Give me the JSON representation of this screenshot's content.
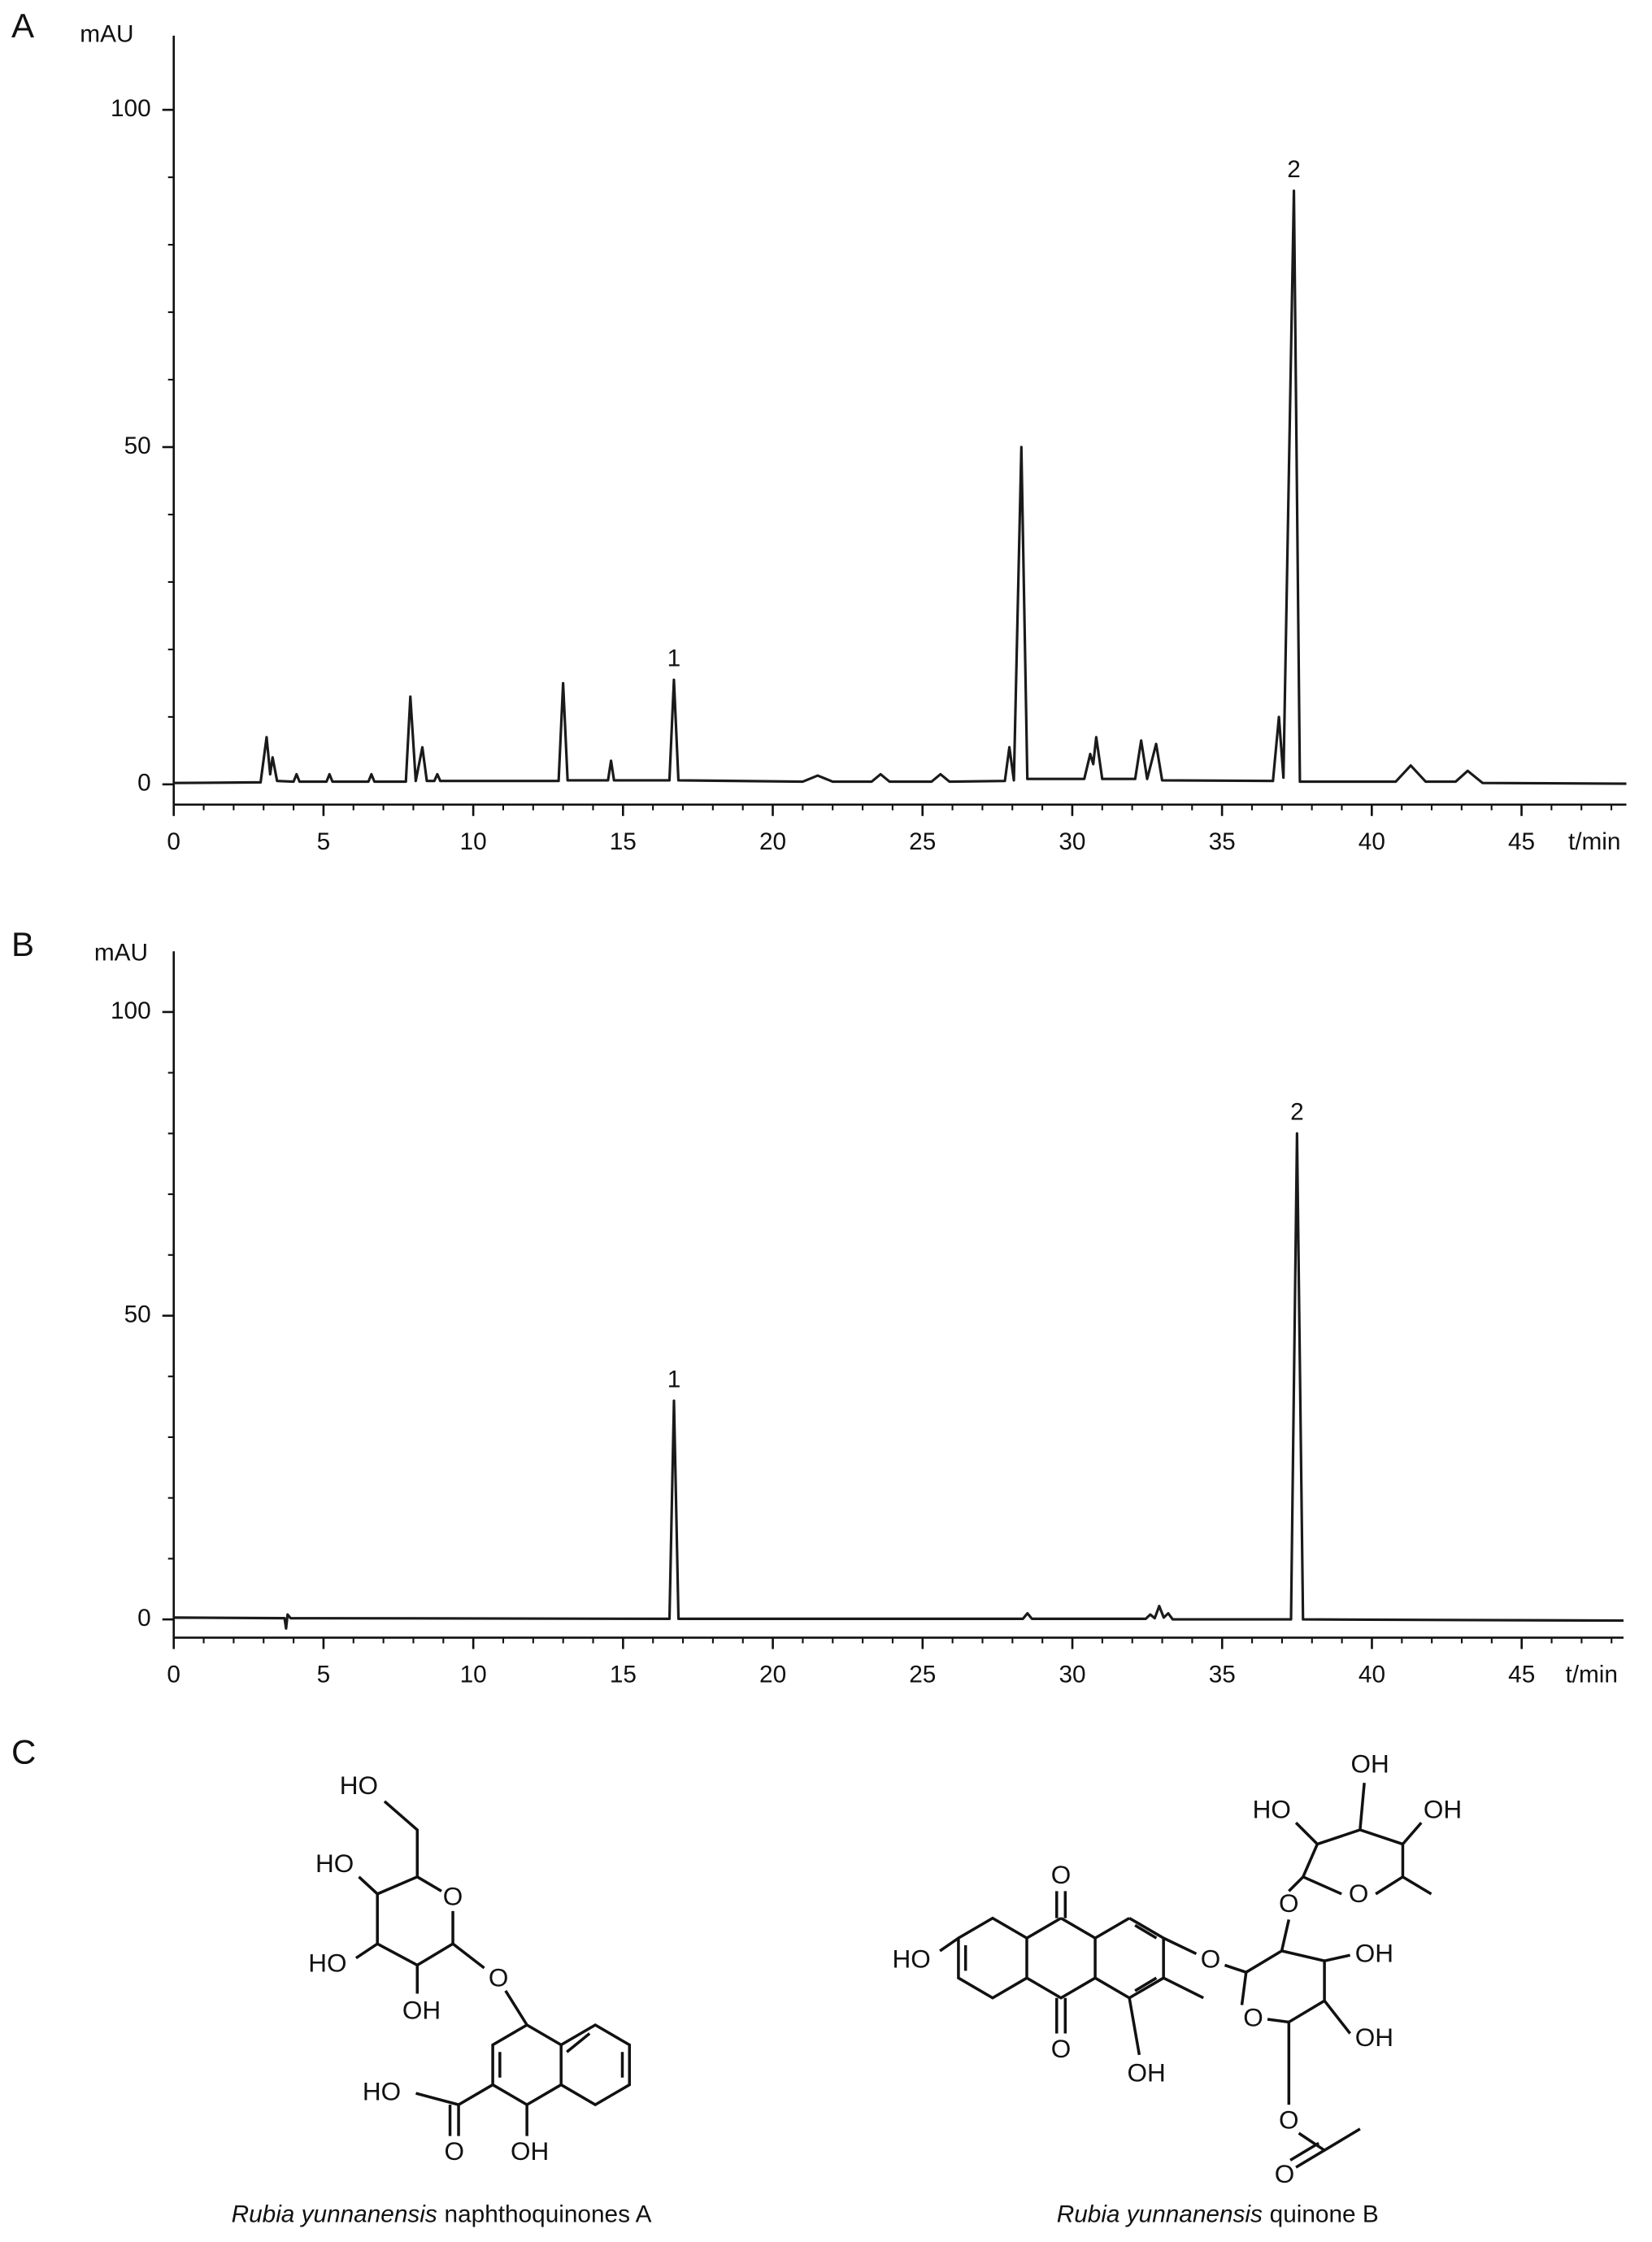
{
  "chart_data": [
    {
      "type": "line",
      "panel_label": "A",
      "y_label": "mAU",
      "x_label": "t/min",
      "color": "#1a1a1a",
      "x": [
        0,
        2.9,
        3.1,
        3.22,
        3.3,
        3.45,
        4.0,
        4.1,
        4.2,
        5.1,
        5.2,
        5.3,
        6.5,
        6.6,
        6.7,
        7.75,
        7.9,
        8.08,
        8.3,
        8.45,
        8.7,
        8.8,
        8.9,
        12.85,
        13.0,
        13.15,
        14.5,
        14.6,
        14.7,
        16.55,
        16.7,
        16.85,
        21.0,
        21.5,
        22.0,
        23.3,
        23.6,
        23.9,
        25.3,
        25.6,
        25.9,
        27.75,
        27.9,
        28.05,
        28.3,
        28.5,
        30.4,
        30.6,
        30.7,
        30.8,
        31.0,
        32.1,
        32.3,
        32.5,
        32.8,
        33.0,
        36.7,
        36.9,
        37.05,
        37.4,
        37.6,
        40.8,
        41.3,
        41.8,
        42.8,
        43.2,
        43.7,
        48.5
      ],
      "values": [
        0.2,
        0.3,
        7,
        1.5,
        4,
        0.5,
        0.4,
        1.5,
        0.4,
        0.4,
        1.5,
        0.4,
        0.4,
        1.5,
        0.4,
        0.4,
        13,
        0.5,
        5.5,
        0.5,
        0.5,
        1.5,
        0.5,
        0.5,
        15,
        0.6,
        0.6,
        3.5,
        0.6,
        0.6,
        15.5,
        0.6,
        0.4,
        1.3,
        0.4,
        0.4,
        1.5,
        0.4,
        0.4,
        1.5,
        0.4,
        0.5,
        5.5,
        0.6,
        50,
        0.8,
        0.8,
        4.5,
        3,
        7,
        0.8,
        0.8,
        6.5,
        0.8,
        6,
        0.6,
        0.5,
        10,
        1,
        88,
        0.4,
        0.4,
        2.8,
        0.4,
        0.4,
        2,
        0.2,
        0.1
      ],
      "xlim": [
        0,
        48.5
      ],
      "ylim": [
        -3,
        111
      ],
      "xticks": [
        0,
        5,
        10,
        15,
        20,
        25,
        30,
        35,
        40,
        45
      ],
      "yticks": [
        0,
        50,
        100
      ],
      "xminorticks": [
        1,
        2,
        3,
        4,
        6,
        7,
        8,
        9,
        11,
        12,
        13,
        14,
        16,
        17,
        18,
        19,
        21,
        22,
        23,
        24,
        26,
        27,
        28,
        29,
        31,
        32,
        33,
        34,
        36,
        37,
        38,
        39,
        41,
        42,
        43,
        44,
        46,
        47,
        48
      ],
      "yminorticks": [
        10,
        20,
        30,
        40,
        60,
        70,
        80,
        90
      ],
      "annotations": [
        {
          "text": "1",
          "x": 16.7,
          "y": 15.5
        },
        {
          "text": "2",
          "x": 37.4,
          "y": 88
        }
      ]
    },
    {
      "type": "line",
      "panel_label": "B",
      "y_label": "mAU",
      "x_label": "t/min",
      "color": "#1a1a1a",
      "x": [
        0,
        3.7,
        3.75,
        3.8,
        3.9,
        16.55,
        16.7,
        16.85,
        28.35,
        28.5,
        28.65,
        32.45,
        32.6,
        32.75,
        32.9,
        33.05,
        33.2,
        33.35,
        37.3,
        37.5,
        37.7,
        48.4
      ],
      "values": [
        0.3,
        0.2,
        -1.5,
        0.8,
        0.2,
        0.1,
        36,
        0.1,
        0.1,
        1,
        0.1,
        0.1,
        0.8,
        0.2,
        2.2,
        0.3,
        1,
        0,
        0,
        80,
        0,
        -0.2
      ],
      "xlim": [
        0,
        48.4
      ],
      "ylim": [
        -3,
        110
      ],
      "xticks": [
        0,
        5,
        10,
        15,
        20,
        25,
        30,
        35,
        40,
        45
      ],
      "yticks": [
        0,
        50,
        100
      ],
      "xminorticks": [
        1,
        2,
        3,
        4,
        6,
        7,
        8,
        9,
        11,
        12,
        13,
        14,
        16,
        17,
        18,
        19,
        21,
        22,
        23,
        24,
        26,
        27,
        28,
        29,
        31,
        32,
        33,
        34,
        36,
        37,
        38,
        39,
        41,
        42,
        43,
        44,
        46,
        47,
        48
      ],
      "yminorticks": [
        10,
        20,
        30,
        40,
        60,
        70,
        80,
        90
      ],
      "annotations": [
        {
          "text": "1",
          "x": 16.7,
          "y": 36
        },
        {
          "text": "2",
          "x": 37.5,
          "y": 80
        }
      ]
    }
  ],
  "panel_c": {
    "label": "C",
    "structures": [
      {
        "labels": [
          "HO",
          "HO",
          "O",
          "HO",
          "OH",
          "O",
          "HO",
          "O",
          "OH"
        ],
        "name_italic": "Rubia yunnanensis",
        "name_rest": "naphthoquinones A"
      },
      {
        "labels": [
          "OH",
          "HO",
          "OH",
          "O",
          "O",
          "O",
          "HO",
          "O",
          "OH",
          "O",
          "OH",
          "O",
          "OH",
          "O",
          "O"
        ],
        "name_italic": "Rubia yunnanensis",
        "name_rest": "quinone B"
      }
    ]
  }
}
